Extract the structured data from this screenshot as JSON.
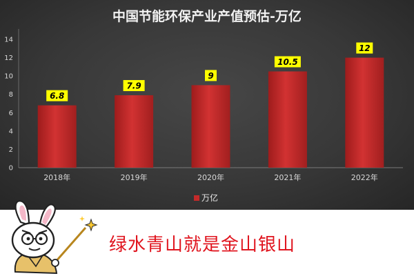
{
  "chart_data": {
    "type": "bar",
    "title": "中国节能环保产业产值预估-万亿",
    "categories": [
      "2018年",
      "2019年",
      "2020年",
      "2021年",
      "2022年"
    ],
    "series": [
      {
        "name": "万亿",
        "values": [
          6.8,
          7.9,
          9,
          10.5,
          12
        ],
        "labels": [
          "6.8",
          "7.9",
          "9",
          "10.5",
          "12"
        ]
      }
    ],
    "ylim": [
      0,
      14
    ],
    "yticks": [
      0,
      2,
      4,
      6,
      8,
      10,
      12,
      14
    ],
    "grid": false,
    "legend_position": "bottom-center",
    "colors": {
      "bar": "#c42a2a",
      "label_bg": "#ffff00",
      "background": "#3a3a3a"
    }
  },
  "footer": {
    "slogan": "绿水青山就是金山银山"
  }
}
